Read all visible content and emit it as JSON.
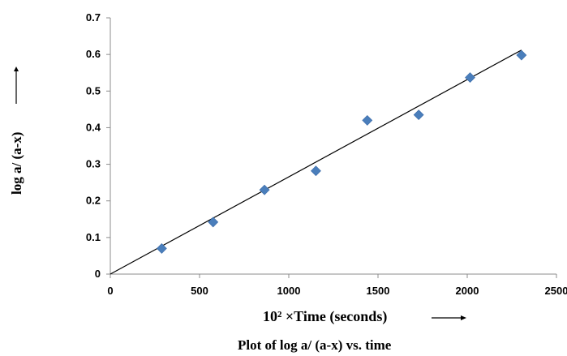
{
  "chart_data": {
    "type": "scatter",
    "xlabel": "10² ×Time (seconds)",
    "ylabel": "log a/ (a-x)",
    "caption": "Plot of log a/ (a-x) vs. time",
    "xlim": [
      0,
      2500
    ],
    "ylim": [
      0,
      0.7
    ],
    "x_ticks": [
      "0",
      "500",
      "1000",
      "1500",
      "2000",
      "2500"
    ],
    "y_ticks": [
      "0",
      "0.1",
      "0.2",
      "0.3",
      "0.4",
      "0.5",
      "0.6",
      "0.7"
    ],
    "grid": false,
    "series": [
      {
        "marker": "diamond",
        "color": "#4a7ebb",
        "x": [
          288,
          576,
          864,
          1152,
          1440,
          1728,
          2016,
          2304
        ],
        "y": [
          0.07,
          0.142,
          0.23,
          0.282,
          0.42,
          0.435,
          0.537,
          0.598
        ]
      }
    ],
    "trendline": {
      "type": "linear",
      "color": "#000000",
      "x": [
        0,
        2304
      ],
      "y": [
        0,
        0.612
      ]
    }
  }
}
